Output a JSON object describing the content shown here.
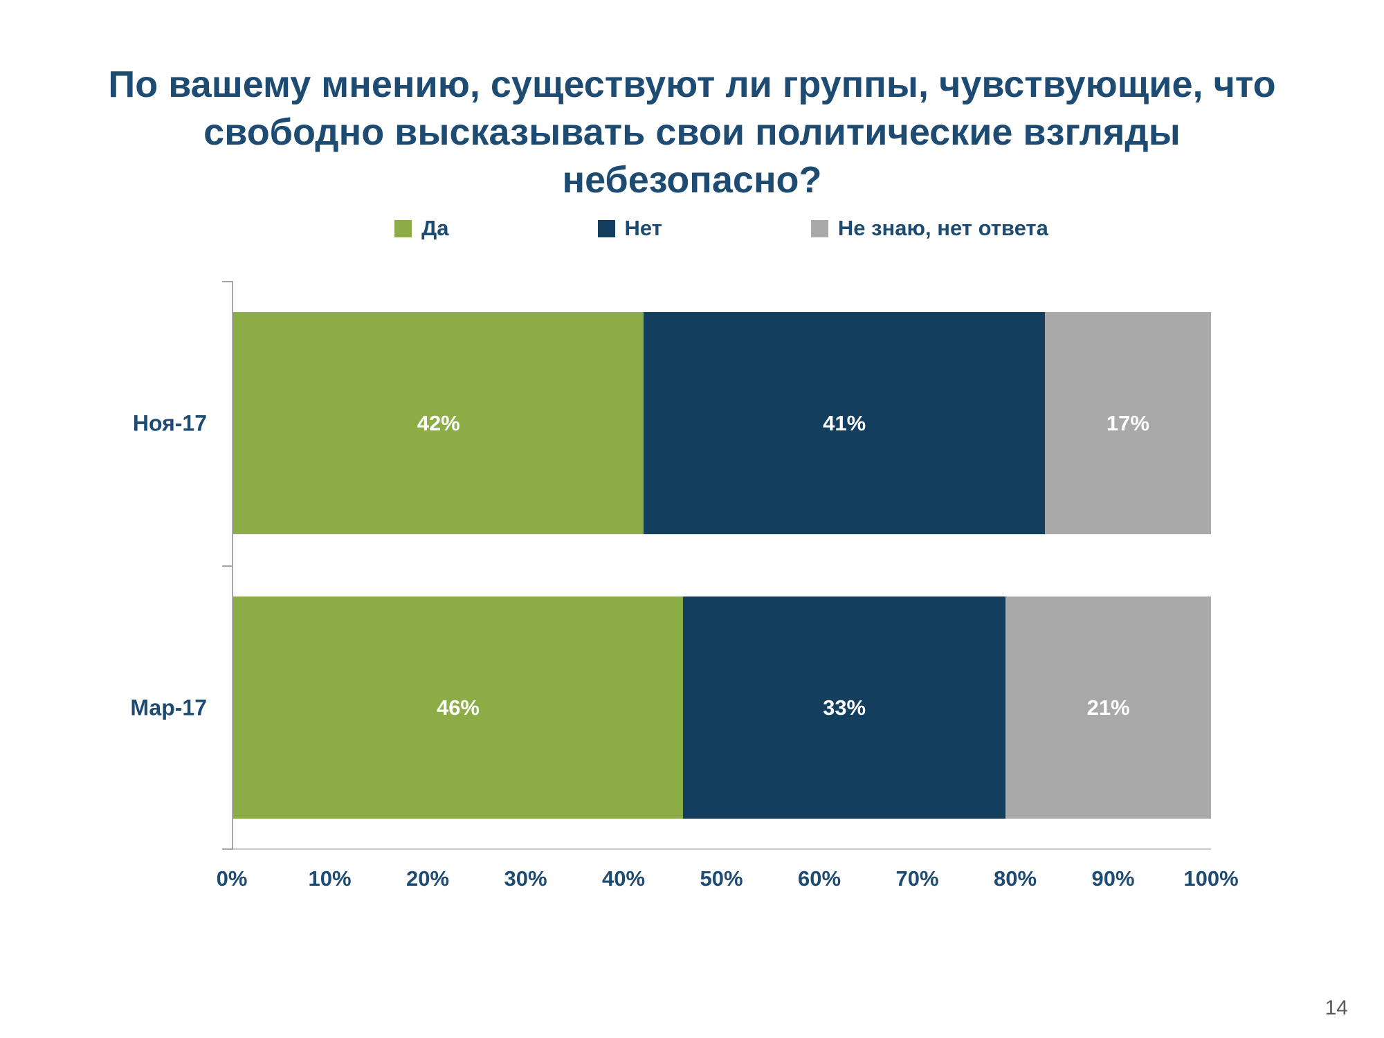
{
  "slide": {
    "title": "По вашему мнению, существуют ли группы, чувствующие, что\nсвободно высказывать свои политические взгляды небезопасно?",
    "page_number": "14",
    "title_color": "#1E4B72"
  },
  "chart_data": {
    "type": "bar",
    "orientation": "horizontal-stacked",
    "title": "По вашему мнению, существуют ли группы, чувствующие, что свободно высказывать свои политические взгляды небезопасно?",
    "categories": [
      "Ноя-17",
      "Мар-17"
    ],
    "series": [
      {
        "name": "Да",
        "color": "#8CAD45",
        "values": [
          42,
          46
        ]
      },
      {
        "name": "Нет",
        "color": "#133E5E",
        "values": [
          41,
          33
        ]
      },
      {
        "name": "Не знаю, нет ответа",
        "color": "#A9A9A9",
        "values": [
          17,
          21
        ]
      }
    ],
    "value_suffix": "%",
    "xlim": [
      0,
      100
    ],
    "x_ticks": [
      "0%",
      "10%",
      "20%",
      "30%",
      "40%",
      "50%",
      "60%",
      "70%",
      "80%",
      "90%",
      "100%"
    ],
    "legend_position": "top",
    "grid": false,
    "data_label_color": "#ffffff"
  }
}
